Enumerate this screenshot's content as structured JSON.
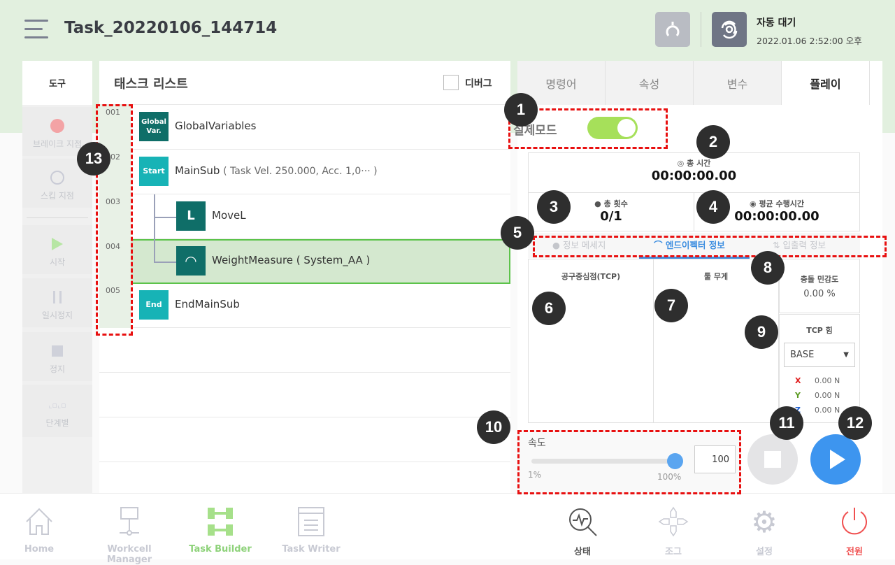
{
  "header": {
    "title": "Task_20220106_144714",
    "status": "자동 대기",
    "datetime": "2022.01.06 2:52:00 오후"
  },
  "tools": {
    "title": "도구",
    "items": [
      {
        "label": "브레이크 지점",
        "icon": "breakpoint-dot"
      },
      {
        "label": "스킵 지점",
        "icon": "skip-circle"
      },
      {
        "label": "시작",
        "icon": "play"
      },
      {
        "label": "일시정지",
        "icon": "pause"
      },
      {
        "label": "정지",
        "icon": "stop"
      },
      {
        "label": "단계별",
        "icon": "step"
      }
    ]
  },
  "task_list": {
    "title": "태스크 리스트",
    "debug_label": "디버그",
    "debug_checked": false,
    "rows": [
      {
        "num": "001",
        "icon_text": "Global Var.",
        "label": "GlobalVariables",
        "color": "#0f6e68"
      },
      {
        "num": "002",
        "icon_text": "Start",
        "label": "MainSub",
        "detail": "( Task Vel. 250.000, Acc. 1,0··· )",
        "color": "#17b3b6"
      },
      {
        "num": "003",
        "icon": "move-l",
        "label": "MoveL",
        "color": "#0f6e68"
      },
      {
        "num": "004",
        "icon": "gauge",
        "label": "WeightMeasure",
        "detail": "( System_AA )",
        "color": "#0f6e68",
        "selected": true
      },
      {
        "num": "005",
        "icon_text": "End",
        "label": "EndMainSub",
        "color": "#17b3b6"
      }
    ]
  },
  "right": {
    "tabs": [
      "명령어",
      "속성",
      "변수",
      "플레이"
    ],
    "active_tab": 3,
    "real_mode_label": "실제모드",
    "real_mode_on": true,
    "total_time_label": "총 시간",
    "total_time": "00:00:00.00",
    "total_count_label": "총 횟수",
    "total_count": "0/1",
    "avg_time_label": "평균 수행시간",
    "avg_time": "00:00:00.00",
    "subtabs": [
      "정보 메세지",
      "엔드이펙터 정보",
      "입출력 정보"
    ],
    "active_subtab": 1,
    "tcp_label": "공구중심점(TCP)",
    "tool_weight_label": "툴 무게",
    "collision_label": "충돌 민감도",
    "collision_value": "0.00 %",
    "tcp_force_label": "TCP 힘",
    "tcp_force_frame": "BASE",
    "forces": [
      {
        "axis": "X",
        "value": "0.00 N",
        "color": "#e02020"
      },
      {
        "axis": "Y",
        "value": "0.00 N",
        "color": "#5a9a20"
      },
      {
        "axis": "Z",
        "value": "0.00 N",
        "color": "#2060d0"
      }
    ],
    "speed_label": "속도",
    "speed_value": "100",
    "speed_min": "1%",
    "speed_max": "100%",
    "speed_percent": 100
  },
  "annotations": [
    "1",
    "2",
    "3",
    "4",
    "5",
    "6",
    "7",
    "8",
    "9",
    "10",
    "11",
    "12",
    "13"
  ],
  "nav": {
    "left": [
      {
        "label": "Home",
        "icon": "home"
      },
      {
        "label": "Workcell Manager",
        "icon": "workcell"
      },
      {
        "label": "Task Builder",
        "icon": "task-builder",
        "active": true
      },
      {
        "label": "Task Writer",
        "icon": "task-writer"
      }
    ],
    "right": [
      {
        "label": "상태",
        "icon": "status-search"
      },
      {
        "label": "조그",
        "icon": "jog"
      },
      {
        "label": "설정",
        "icon": "gear"
      },
      {
        "label": "전원",
        "icon": "power"
      }
    ]
  },
  "colors": {
    "accent_green": "#a6e05a",
    "play_blue": "#3d95ef",
    "power_red": "#f05050",
    "header_bg": "#e2f0df"
  }
}
